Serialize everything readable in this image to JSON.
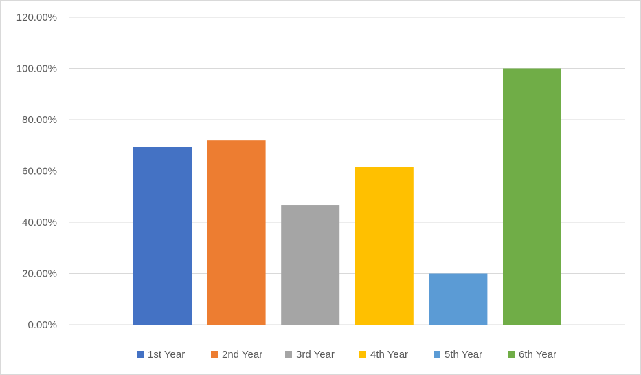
{
  "chart_data": {
    "type": "bar",
    "title": "",
    "xlabel": "",
    "ylabel": "",
    "ylim": [
      0,
      120
    ],
    "y_ticks": [
      "0.00%",
      "20.00%",
      "40.00%",
      "60.00%",
      "80.00%",
      "100.00%",
      "120.00%"
    ],
    "y_tick_values": [
      0,
      20,
      40,
      60,
      80,
      100,
      120
    ],
    "grid": true,
    "legend_position": "bottom",
    "series": [
      {
        "name": "1st Year",
        "value": 69.4,
        "color": "#4472c4"
      },
      {
        "name": "2nd Year",
        "value": 71.9,
        "color": "#ed7d31"
      },
      {
        "name": "3rd Year",
        "value": 46.7,
        "color": "#a5a5a5"
      },
      {
        "name": "4th Year",
        "value": 61.5,
        "color": "#ffc000"
      },
      {
        "name": "5th Year",
        "value": 20.0,
        "color": "#5b9bd5"
      },
      {
        "name": "6th Year",
        "value": 100.0,
        "color": "#70ad47"
      }
    ]
  }
}
